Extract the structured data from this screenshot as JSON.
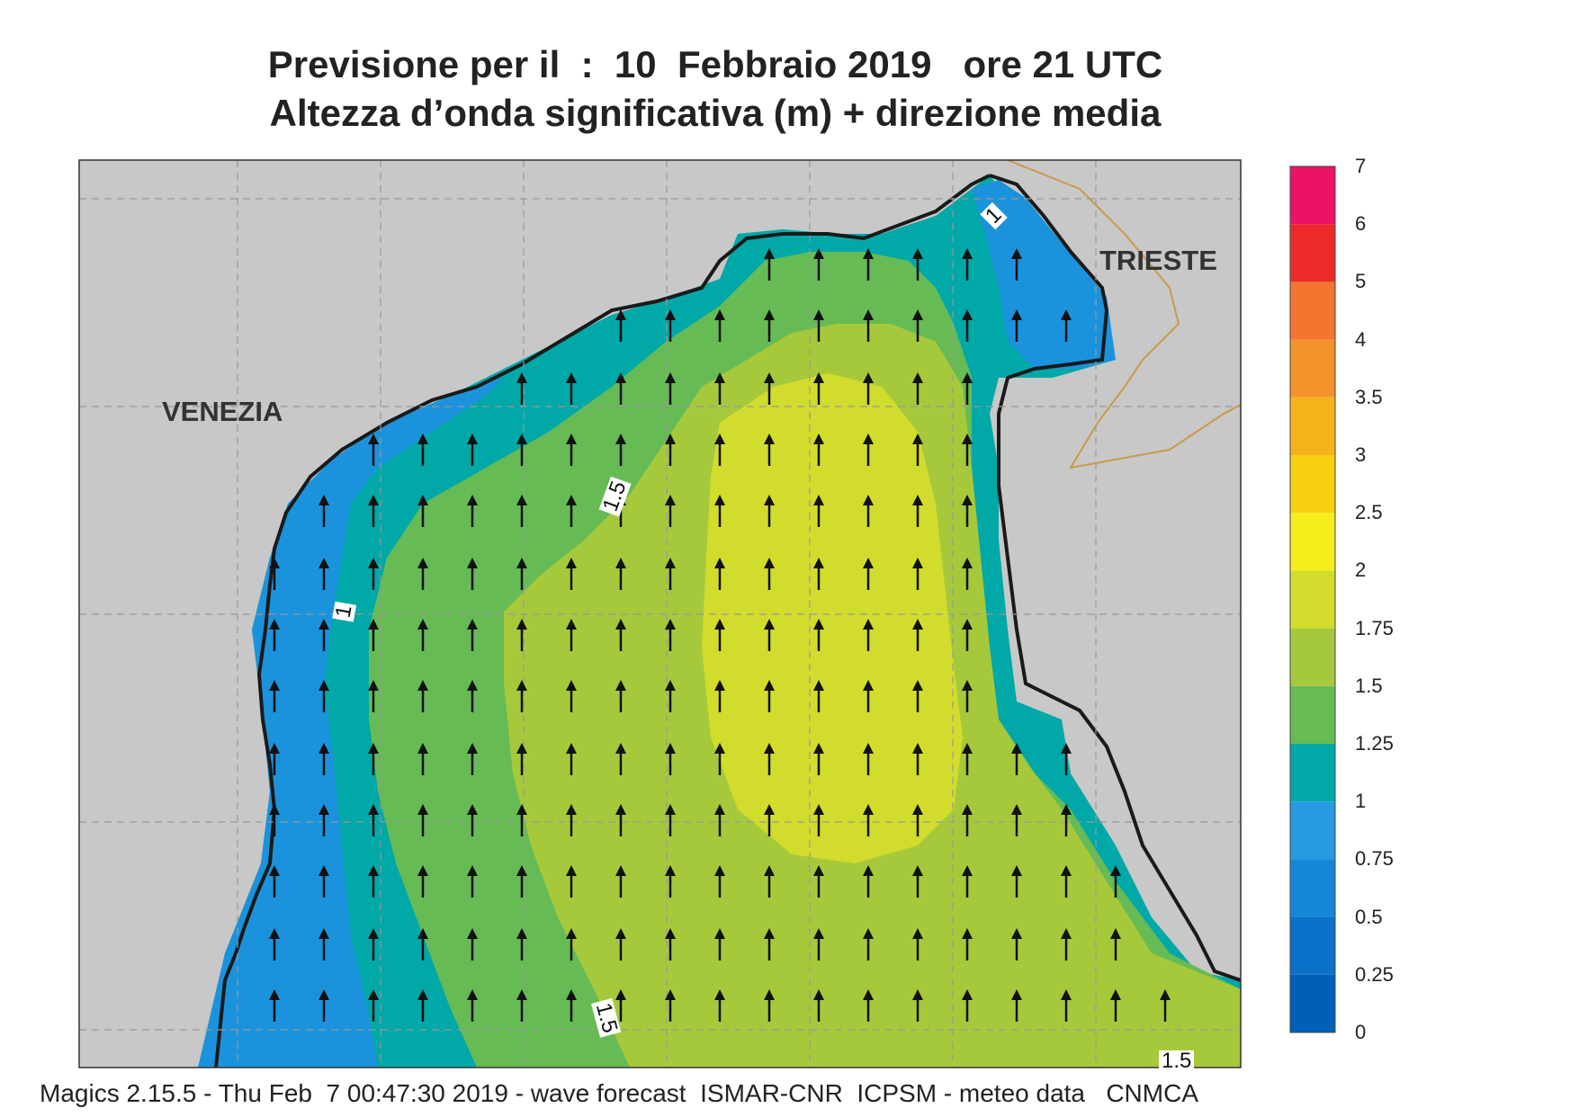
{
  "title_line1": "Previsione per il  :  10  Febbraio 2019   ore 21 UTC",
  "title_line2": "Altezza d’onda significativa (m) + direzione media",
  "place_labels": {
    "venezia": "VENEZIA",
    "trieste": "TRIESTE"
  },
  "contour_labels": [
    "1.5",
    "1",
    "1",
    "1.5",
    "1.5"
  ],
  "footer": "Magics 2.15.5 - Thu Feb  7 00:47:30 2019 - wave forecast  ISMAR-CNR  ICPSM - meteo data   CNMCA",
  "colorbar": {
    "levels": [
      "0",
      "0.25",
      "0.5",
      "0.75",
      "1",
      "1.25",
      "1.5",
      "1.75",
      "2",
      "2.5",
      "3",
      "3.5",
      "4",
      "5",
      "6",
      "7"
    ],
    "colors": [
      "#0060b8",
      "#0a72c8",
      "#1587d8",
      "#2799e0",
      "#00a8a8",
      "#66bb55",
      "#a6c93c",
      "#d2dc2c",
      "#f5ee1c",
      "#f6d011",
      "#f5b21a",
      "#f4922a",
      "#f27530",
      "#ed2a2a",
      "#ec1266"
    ]
  },
  "colors": {
    "land": "#c8c8c8",
    "coast": "#1a1a1a",
    "border": "#c99a48",
    "arrow": "#111111"
  },
  "wave_direction": "north"
}
